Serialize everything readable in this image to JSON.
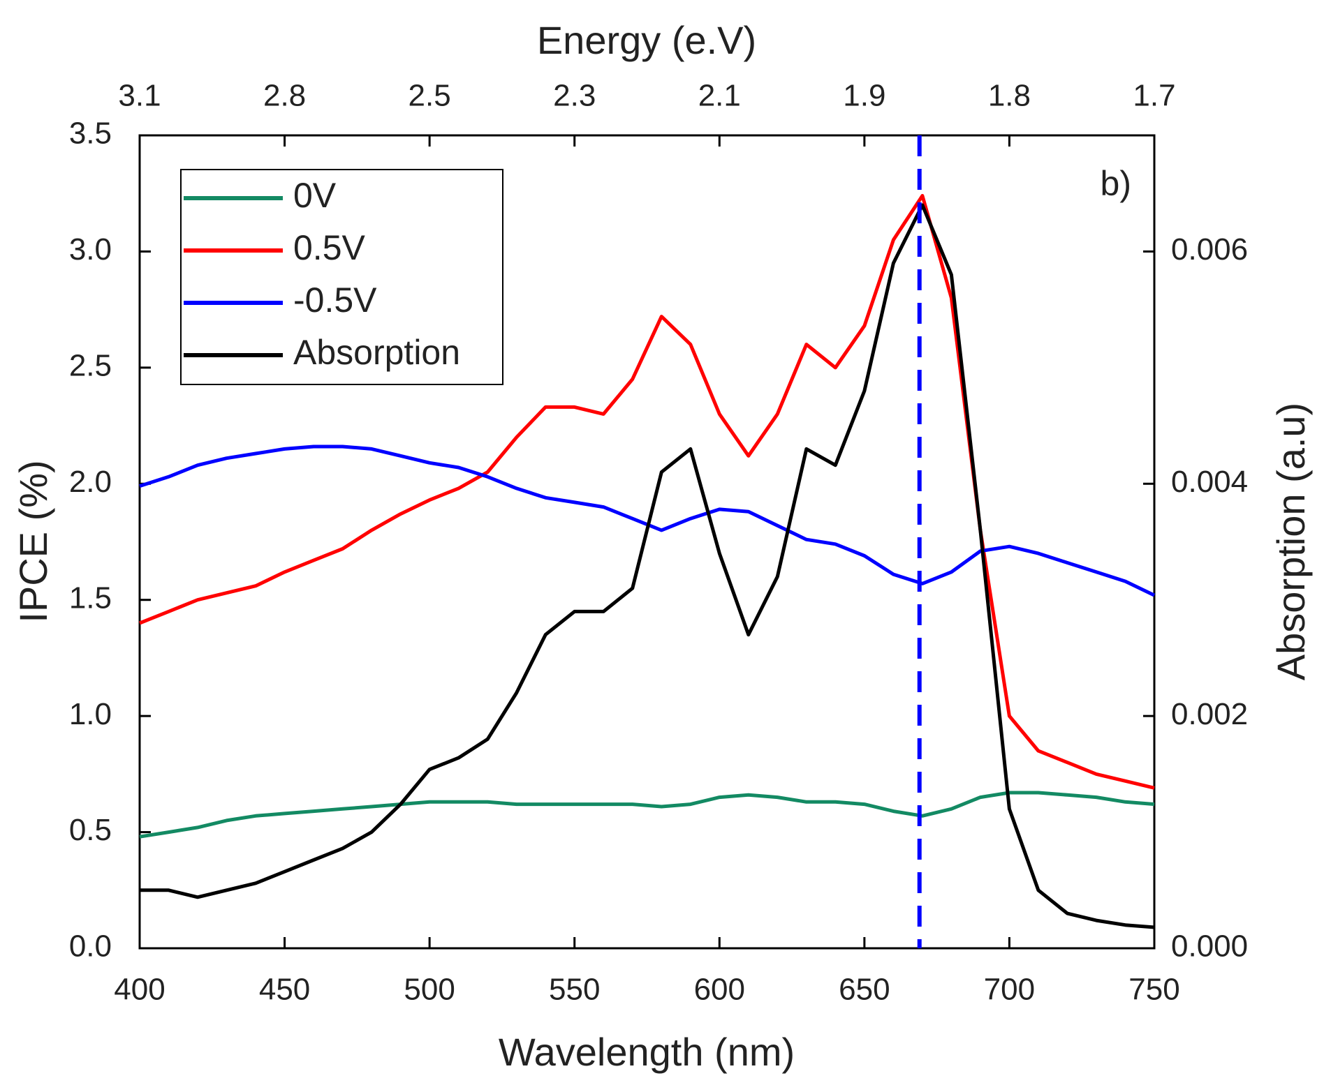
{
  "chart_data": {
    "type": "line",
    "xlabel": "Wavelength (nm)",
    "ylabel": "IPCE (%)",
    "y2label": "Absorption (a.u)",
    "x2label": "Energy (e.V)",
    "annotation": "b)",
    "reference_line_x": 669,
    "reference_line_color": "#0000ff",
    "legend": "top-left",
    "xlim": [
      400,
      750
    ],
    "xticks": [
      400,
      450,
      500,
      550,
      600,
      650,
      700,
      750
    ],
    "x2ticks": [
      {
        "value": 400,
        "label": "3.1"
      },
      {
        "value": 450,
        "label": "2.8"
      },
      {
        "value": 500,
        "label": "2.5"
      },
      {
        "value": 550,
        "label": "2.3"
      },
      {
        "value": 600,
        "label": "2.1"
      },
      {
        "value": 650,
        "label": "1.9"
      },
      {
        "value": 700,
        "label": "1.8"
      },
      {
        "value": 750,
        "label": "1.7"
      }
    ],
    "ylim": [
      0,
      3.5
    ],
    "yticks": [
      {
        "value": 0,
        "label": "0.0"
      },
      0.5,
      {
        "value": 1,
        "label": "1.0"
      },
      1.5,
      {
        "value": 2,
        "label": "2.0"
      },
      2.5,
      {
        "value": 3,
        "label": "3.0"
      },
      3.5
    ],
    "y2lim": [
      0,
      0.007
    ],
    "y2ticks": [
      {
        "value": 0,
        "label": "0.000"
      },
      {
        "value": 0.002,
        "label": "0.002"
      },
      {
        "value": 0.004,
        "label": "0.004"
      },
      {
        "value": 0.006,
        "label": "0.006"
      }
    ],
    "x": [
      400,
      410,
      420,
      430,
      440,
      450,
      460,
      470,
      480,
      490,
      500,
      510,
      520,
      530,
      540,
      550,
      560,
      570,
      580,
      590,
      600,
      610,
      620,
      630,
      640,
      650,
      660,
      670,
      680,
      690,
      700,
      710,
      720,
      730,
      740,
      750
    ],
    "series": [
      {
        "name": "0V",
        "color": "#138a63",
        "values": [
          0.48,
          0.5,
          0.52,
          0.55,
          0.57,
          0.58,
          0.59,
          0.6,
          0.61,
          0.62,
          0.63,
          0.63,
          0.63,
          0.62,
          0.62,
          0.62,
          0.62,
          0.62,
          0.61,
          0.62,
          0.65,
          0.66,
          0.65,
          0.63,
          0.63,
          0.62,
          0.59,
          0.57,
          0.6,
          0.65,
          0.67,
          0.67,
          0.66,
          0.65,
          0.63,
          0.62
        ]
      },
      {
        "name": "0.5V",
        "color": "#ff0000",
        "values": [
          1.4,
          1.45,
          1.5,
          1.53,
          1.56,
          1.62,
          1.67,
          1.72,
          1.8,
          1.87,
          1.93,
          1.98,
          2.05,
          2.2,
          2.33,
          2.33,
          2.3,
          2.45,
          2.72,
          2.6,
          2.3,
          2.12,
          2.3,
          2.6,
          2.5,
          2.68,
          3.05,
          3.24,
          2.8,
          1.8,
          1.0,
          0.85,
          0.8,
          0.75,
          0.72,
          0.69
        ]
      },
      {
        "name": "-0.5V",
        "color": "#0000ff",
        "values": [
          1.99,
          2.03,
          2.08,
          2.11,
          2.13,
          2.15,
          2.16,
          2.16,
          2.15,
          2.12,
          2.09,
          2.07,
          2.03,
          1.98,
          1.94,
          1.92,
          1.9,
          1.85,
          1.8,
          1.85,
          1.89,
          1.88,
          1.82,
          1.76,
          1.74,
          1.69,
          1.61,
          1.57,
          1.62,
          1.71,
          1.73,
          1.7,
          1.66,
          1.62,
          1.58,
          1.52
        ]
      },
      {
        "name": "Absorption",
        "color": "#000000",
        "axis": "y2",
        "values": [
          0.0005,
          0.0005,
          0.00044,
          0.0005,
          0.00056,
          0.00066,
          0.00076,
          0.00086,
          0.001,
          0.00124,
          0.00154,
          0.00164,
          0.0018,
          0.0022,
          0.0027,
          0.0029,
          0.0029,
          0.0031,
          0.0041,
          0.0043,
          0.0034,
          0.0027,
          0.0032,
          0.0043,
          0.00416,
          0.0048,
          0.0059,
          0.0064,
          0.0058,
          0.0036,
          0.0012,
          0.0005,
          0.0003,
          0.00024,
          0.0002,
          0.00018
        ]
      }
    ]
  }
}
